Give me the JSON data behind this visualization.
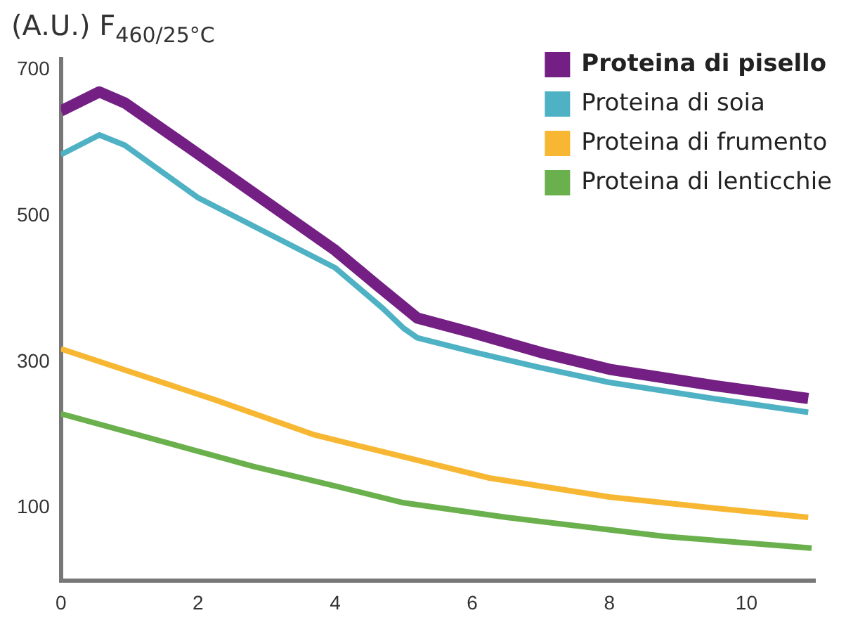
{
  "chart_data": {
    "type": "line",
    "ylabel": "(A.U.) F$_{460/25°C}$",
    "xlim": [
      0,
      11
    ],
    "xticks": [
      0,
      2,
      4,
      6,
      8,
      10
    ],
    "ylim": [
      0,
      715
    ],
    "yticks": [
      100,
      300,
      500,
      700
    ],
    "grid": false,
    "legend": "top right",
    "marker": "none",
    "line_style": "solid",
    "series": [
      {
        "name": "Proteina di pisello",
        "color": "#731f83",
        "x": [
          0,
          0.56,
          0.93,
          2,
          4,
          4.6,
          5.2,
          6,
          7,
          8,
          9.5,
          10.9
        ],
        "values": [
          644,
          670,
          655,
          585,
          453,
          406,
          360,
          340,
          313,
          290,
          268,
          250
        ]
      },
      {
        "name": "Proteina di soia",
        "color": "#4fb1c4",
        "x": [
          0,
          0.56,
          0.93,
          2,
          4,
          4.7,
          5,
          5.2,
          6,
          7,
          8,
          9.5,
          10.9
        ],
        "values": [
          584,
          611,
          597,
          525,
          429,
          373,
          346,
          333,
          314,
          292,
          272,
          250,
          231
        ]
      },
      {
        "name": "Proteina di frumento",
        "color": "#f7b733",
        "x": [
          0,
          2.25,
          3.7,
          5,
          6.25,
          8,
          9.5,
          10.9
        ],
        "values": [
          318,
          248,
          200,
          170,
          141,
          115,
          100,
          87
        ]
      },
      {
        "name": "Proteina di lenticchie",
        "color": "#6ab04c",
        "x": [
          0,
          2.8,
          4,
          5,
          6.5,
          8.8,
          10.95
        ],
        "values": [
          229,
          157,
          130,
          107,
          87,
          61,
          45
        ]
      }
    ]
  }
}
